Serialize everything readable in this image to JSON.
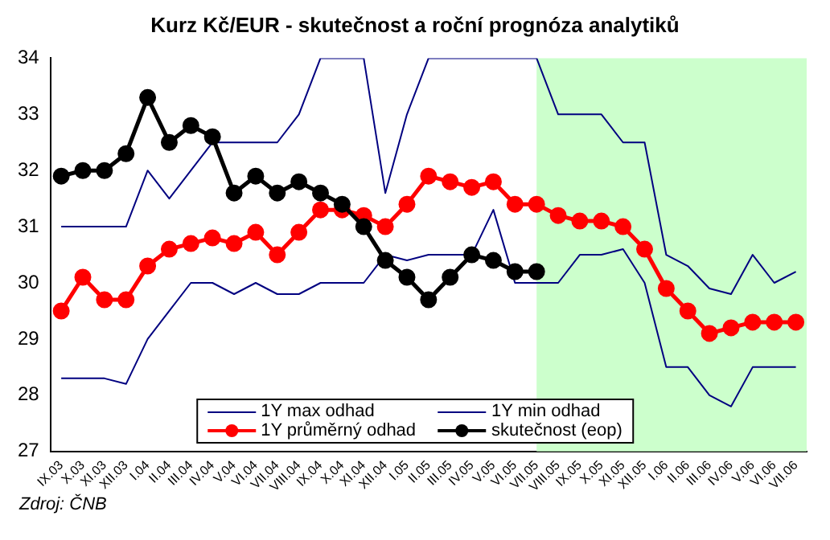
{
  "chart_data": {
    "type": "line",
    "title": "Kurz Kč/EUR - skutečnost a roční prognóza analytiků",
    "categories": [
      "IX.03",
      "X.03",
      "XI.03",
      "XII.03",
      "I.04",
      "II.04",
      "III.04",
      "IV.04",
      "V.04",
      "VI.04",
      "VII.04",
      "VIII.04",
      "IX.04",
      "X.04",
      "XI.04",
      "XII.04",
      "I.05",
      "II.05",
      "III.05",
      "IV.05",
      "V.05",
      "VI.05",
      "VII.05",
      "VIII.05",
      "IX.05",
      "X.05",
      "XI.05",
      "XII.05",
      "I.06",
      "II.06",
      "III.06",
      "IV.06",
      "V.06",
      "VI.06",
      "VII.06"
    ],
    "series": [
      {
        "name": "1Y max odhad",
        "color": "#000080",
        "marker": "none",
        "values": [
          31,
          31,
          31,
          31,
          32,
          31.5,
          32,
          32.5,
          32.5,
          32.5,
          32.5,
          33,
          34,
          34,
          34,
          31.6,
          33,
          34,
          34,
          34,
          34,
          34,
          34,
          33,
          33,
          33,
          32.5,
          32.5,
          30.5,
          30.3,
          29.9,
          29.8,
          30.5,
          30,
          30.2
        ]
      },
      {
        "name": "1Y min odhad",
        "color": "#000080",
        "marker": "none",
        "values": [
          28.3,
          28.3,
          28.3,
          28.2,
          29,
          29.5,
          30,
          30,
          29.8,
          30,
          29.8,
          29.8,
          30,
          30,
          30,
          30.5,
          30.4,
          30.5,
          30.5,
          30.5,
          31.3,
          30,
          30,
          30,
          30.5,
          30.5,
          30.6,
          30,
          28.5,
          28.5,
          28,
          27.8,
          28.5,
          28.5,
          28.5
        ]
      },
      {
        "name": "1Y průměrný odhad",
        "color": "#ff0000",
        "marker": "circle",
        "values": [
          29.5,
          30.1,
          29.7,
          29.7,
          30.3,
          30.6,
          30.7,
          30.8,
          30.7,
          30.9,
          30.5,
          30.9,
          31.3,
          31.3,
          31.2,
          31,
          31.4,
          31.9,
          31.8,
          31.7,
          31.8,
          31.4,
          31.4,
          31.2,
          31.1,
          31.1,
          31,
          30.6,
          29.9,
          29.5,
          29.1,
          29.2,
          29.3,
          29.3,
          29.3
        ]
      },
      {
        "name": "skutečnost (eop)",
        "color": "#000000",
        "marker": "circle",
        "values": [
          31.9,
          32,
          32,
          32.3,
          33.3,
          32.5,
          32.8,
          32.6,
          31.6,
          31.9,
          31.6,
          31.8,
          31.6,
          31.4,
          31,
          30.4,
          30.1,
          29.7,
          30.1,
          30.5,
          30.4,
          30.2,
          30.2,
          null,
          null,
          null,
          null,
          null,
          null,
          null,
          null,
          null,
          null,
          null,
          null
        ]
      }
    ],
    "ylim": [
      27,
      34
    ],
    "yticks": [
      27,
      28,
      29,
      30,
      31,
      32,
      33,
      34
    ],
    "grid": false,
    "legend": "bottom",
    "bands": [
      {
        "axis": "x",
        "from": "VII.05",
        "to": "VII.06",
        "color": "#ccffcc"
      }
    ],
    "annotations": [
      "Zdroj: ČNB"
    ]
  }
}
